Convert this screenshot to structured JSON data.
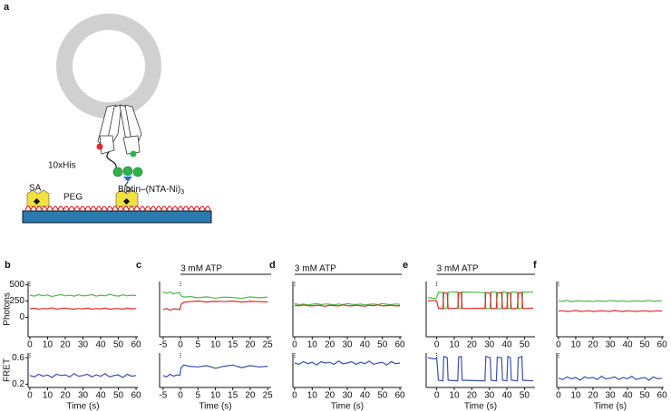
{
  "diagram": {
    "panel": "a",
    "labels": {
      "his": "10xHis",
      "sa": "SA",
      "peg": "PEG",
      "biotin": "Biotin–(NTA-Ni)",
      "biotin_sub": "3"
    }
  },
  "chart_data": [
    {
      "type": "line",
      "panel": "b",
      "ylabel": "Photons",
      "xlim": [
        -1,
        61
      ],
      "xticks": [
        0,
        10,
        20,
        30,
        40,
        50,
        60
      ],
      "ylim": [
        -300,
        550
      ],
      "yticks": [
        0,
        250,
        500
      ],
      "x": [
        0,
        2.5,
        5,
        7.5,
        10,
        12.5,
        15,
        17.5,
        20,
        22.5,
        25,
        27.5,
        30,
        32.5,
        35,
        37.5,
        40,
        42.5,
        45,
        47.5,
        50,
        52.5,
        55,
        57.5,
        60
      ],
      "series": [
        {
          "color": "#4cb848",
          "values": [
            340,
            325,
            350,
            330,
            345,
            320,
            335,
            350,
            330,
            340,
            325,
            345,
            330,
            335,
            350,
            325,
            340,
            330,
            355,
            335,
            325,
            345,
            330,
            340,
            335
          ]
        },
        {
          "color": "#e0282a",
          "values": [
            130,
            140,
            125,
            135,
            130,
            145,
            125,
            135,
            140,
            130,
            125,
            135,
            130,
            140,
            125,
            135,
            130,
            140,
            125,
            130,
            135,
            125,
            140,
            130,
            135
          ]
        }
      ]
    },
    {
      "type": "line",
      "ylabel": "FRET",
      "xlabel": "Time (s)",
      "xlim": [
        -1,
        61
      ],
      "xticks": [
        0,
        10,
        20,
        30,
        40,
        50,
        60
      ],
      "ylim": [
        0.15,
        0.67
      ],
      "yticks": [
        0.2,
        0.6
      ],
      "x": [
        0,
        2.5,
        5,
        7.5,
        10,
        12.5,
        15,
        17.5,
        20,
        22.5,
        25,
        27.5,
        30,
        32.5,
        35,
        37.5,
        40,
        42.5,
        45,
        47.5,
        50,
        52.5,
        55,
        57.5,
        60
      ],
      "series": [
        {
          "color": "#3a4fb0",
          "values": [
            0.33,
            0.31,
            0.35,
            0.32,
            0.34,
            0.3,
            0.35,
            0.33,
            0.34,
            0.31,
            0.36,
            0.32,
            0.33,
            0.35,
            0.31,
            0.34,
            0.32,
            0.36,
            0.31,
            0.33,
            0.34,
            0.3,
            0.35,
            0.32,
            0.33
          ]
        }
      ]
    },
    {
      "type": "line",
      "panel": "c",
      "annotation": "3 mM ATP",
      "xlim": [
        -6,
        26
      ],
      "xticks": [
        -5,
        0,
        5,
        10,
        15,
        20,
        25
      ],
      "ylim": [
        -300,
        550
      ],
      "x": [
        -5,
        -4,
        -3,
        -2,
        -1,
        -0.2,
        0.2,
        1,
        2.5,
        5,
        7.5,
        10,
        12.5,
        15,
        17.5,
        20,
        22.5,
        25
      ],
      "series": [
        {
          "color": "#4cb848",
          "values": [
            390,
            370,
            385,
            360,
            375,
            380,
            330,
            310,
            320,
            300,
            315,
            295,
            310,
            305,
            290,
            315,
            300,
            310
          ]
        },
        {
          "color": "#e0282a",
          "values": [
            120,
            135,
            110,
            130,
            125,
            120,
            200,
            230,
            240,
            250,
            235,
            245,
            240,
            250,
            235,
            245,
            240,
            235
          ]
        }
      ]
    },
    {
      "type": "line",
      "xlabel": "Time (s)",
      "xlim": [
        -6,
        26
      ],
      "xticks": [
        -5,
        0,
        5,
        10,
        15,
        20,
        25
      ],
      "ylim": [
        0.15,
        0.67
      ],
      "x": [
        -5,
        -4,
        -3,
        -2,
        -1,
        -0.2,
        0.2,
        1,
        2.5,
        5,
        7.5,
        10,
        12.5,
        15,
        17.5,
        20,
        22.5,
        25
      ],
      "series": [
        {
          "color": "#3a4fb0",
          "values": [
            0.33,
            0.31,
            0.35,
            0.32,
            0.34,
            0.33,
            0.45,
            0.49,
            0.47,
            0.46,
            0.48,
            0.44,
            0.47,
            0.49,
            0.45,
            0.48,
            0.46,
            0.47
          ]
        }
      ]
    },
    {
      "type": "line",
      "panel": "d",
      "annotation": "3 mM ATP",
      "xlim": [
        -1,
        61
      ],
      "xticks": [
        0,
        10,
        20,
        30,
        40,
        50,
        60
      ],
      "ylim": [
        -300,
        550
      ],
      "x": [
        0,
        2.5,
        5,
        7.5,
        10,
        12.5,
        15,
        17.5,
        20,
        22.5,
        25,
        27.5,
        30,
        32.5,
        35,
        37.5,
        40,
        42.5,
        45,
        47.5,
        50,
        52.5,
        55,
        57.5,
        60
      ],
      "series": [
        {
          "color": "#4cb848",
          "values": [
            210,
            195,
            205,
            190,
            200,
            210,
            195,
            205,
            200,
            190,
            205,
            195,
            210,
            200,
            195,
            205,
            190,
            200,
            205,
            195,
            210,
            200,
            195,
            205,
            200
          ]
        },
        {
          "color": "#e0282a",
          "values": [
            185,
            175,
            190,
            180,
            175,
            185,
            180,
            170,
            185,
            180,
            175,
            190,
            180,
            175,
            185,
            180,
            170,
            185,
            180,
            190,
            175,
            180,
            185,
            175,
            180
          ]
        }
      ]
    },
    {
      "type": "line",
      "xlabel": "Time (s)",
      "xlim": [
        -1,
        61
      ],
      "xticks": [
        0,
        10,
        20,
        30,
        40,
        50,
        60
      ],
      "ylim": [
        0.15,
        0.67
      ],
      "x": [
        0,
        2.5,
        5,
        7.5,
        10,
        12.5,
        15,
        17.5,
        20,
        22.5,
        25,
        27.5,
        30,
        32.5,
        35,
        37.5,
        40,
        42.5,
        45,
        47.5,
        50,
        52.5,
        55,
        57.5,
        60
      ],
      "series": [
        {
          "color": "#3a4fb0",
          "values": [
            0.52,
            0.5,
            0.54,
            0.51,
            0.53,
            0.49,
            0.54,
            0.52,
            0.53,
            0.5,
            0.55,
            0.51,
            0.52,
            0.54,
            0.5,
            0.53,
            0.51,
            0.55,
            0.5,
            0.52,
            0.53,
            0.49,
            0.54,
            0.51,
            0.52
          ]
        }
      ]
    },
    {
      "type": "line",
      "panel": "e",
      "annotation": "3 mM ATP",
      "xlim": [
        -6,
        56
      ],
      "xticks": [
        0,
        10,
        20,
        30,
        40,
        50
      ],
      "ylim": [
        -300,
        550
      ],
      "x": [
        -5,
        -1,
        0,
        1,
        3.5,
        4,
        6,
        6.5,
        12,
        12.5,
        14,
        14.5,
        27.5,
        28,
        30.5,
        31,
        34,
        34.5,
        37,
        37.5,
        40,
        40.5,
        42,
        42.5,
        46,
        46.5,
        48.5,
        49,
        55
      ],
      "series": [
        {
          "color": "#4cb848",
          "values": [
            300,
            290,
            300,
            390,
            380,
            130,
            140,
            385,
            390,
            130,
            135,
            390,
            380,
            130,
            140,
            390,
            385,
            130,
            135,
            390,
            380,
            130,
            140,
            390,
            385,
            130,
            135,
            390,
            385
          ]
        },
        {
          "color": "#e0282a",
          "values": [
            250,
            260,
            250,
            140,
            130,
            380,
            370,
            135,
            140,
            375,
            380,
            135,
            140,
            380,
            370,
            130,
            140,
            375,
            380,
            135,
            140,
            380,
            370,
            130,
            140,
            375,
            380,
            135,
            140
          ]
        }
      ]
    },
    {
      "type": "line",
      "xlabel": "Time (s)",
      "xlim": [
        -6,
        56
      ],
      "xticks": [
        0,
        10,
        20,
        30,
        40,
        50
      ],
      "ylim": [
        0.15,
        0.67
      ],
      "x": [
        -5,
        -1,
        0,
        1,
        3.5,
        4,
        6,
        6.5,
        12,
        12.5,
        14,
        14.5,
        27.5,
        28,
        30.5,
        31,
        34,
        34.5,
        37,
        37.5,
        40,
        40.5,
        42,
        42.5,
        46,
        46.5,
        48.5,
        49,
        55
      ],
      "series": [
        {
          "color": "#3a4fb0",
          "values": [
            0.6,
            0.58,
            0.6,
            0.26,
            0.25,
            0.62,
            0.6,
            0.26,
            0.25,
            0.61,
            0.62,
            0.26,
            0.25,
            0.62,
            0.6,
            0.26,
            0.25,
            0.61,
            0.6,
            0.26,
            0.25,
            0.62,
            0.6,
            0.26,
            0.25,
            0.6,
            0.62,
            0.26,
            0.25
          ]
        }
      ]
    },
    {
      "type": "line",
      "panel": "f",
      "xlim": [
        -1,
        61
      ],
      "xticks": [
        0,
        10,
        20,
        30,
        40,
        50,
        60
      ],
      "ylim": [
        -300,
        550
      ],
      "x": [
        0,
        2.5,
        5,
        7.5,
        10,
        12.5,
        15,
        17.5,
        20,
        22.5,
        25,
        27.5,
        30,
        32.5,
        35,
        37.5,
        40,
        42.5,
        45,
        47.5,
        50,
        52.5,
        55,
        57.5,
        60
      ],
      "series": [
        {
          "color": "#4cb848",
          "values": [
            255,
            245,
            260,
            240,
            250,
            255,
            245,
            250,
            240,
            255,
            250,
            245,
            260,
            250,
            245,
            255,
            240,
            250,
            255,
            245,
            250,
            260,
            245,
            250,
            255
          ]
        },
        {
          "color": "#e0282a",
          "values": [
            95,
            100,
            90,
            95,
            105,
            90,
            95,
            100,
            90,
            95,
            100,
            95,
            90,
            105,
            95,
            90,
            100,
            95,
            90,
            95,
            100,
            90,
            95,
            100,
            95
          ]
        }
      ]
    },
    {
      "type": "line",
      "xlabel": "Time (s)",
      "xlim": [
        -1,
        61
      ],
      "xticks": [
        0,
        10,
        20,
        30,
        40,
        50,
        60
      ],
      "ylim": [
        0.15,
        0.67
      ],
      "x": [
        0,
        2.5,
        5,
        7.5,
        10,
        12.5,
        15,
        17.5,
        20,
        22.5,
        25,
        27.5,
        30,
        32.5,
        35,
        37.5,
        40,
        42.5,
        45,
        47.5,
        50,
        52.5,
        55,
        57.5,
        60
      ],
      "series": [
        {
          "color": "#3a4fb0",
          "values": [
            0.29,
            0.27,
            0.31,
            0.28,
            0.3,
            0.26,
            0.31,
            0.29,
            0.3,
            0.27,
            0.32,
            0.28,
            0.29,
            0.31,
            0.27,
            0.3,
            0.28,
            0.32,
            0.27,
            0.29,
            0.3,
            0.26,
            0.31,
            0.28,
            0.29
          ]
        }
      ]
    }
  ]
}
